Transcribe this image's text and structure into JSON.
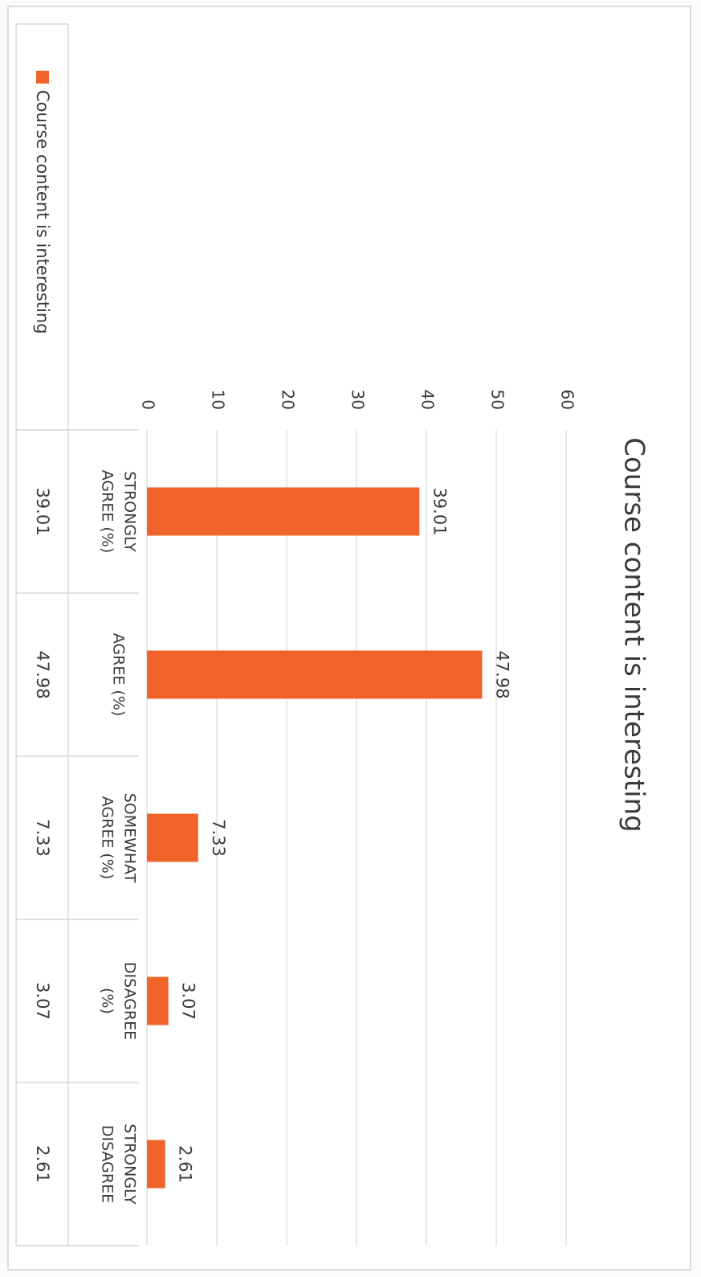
{
  "chart_data": {
    "type": "bar",
    "title": "Course content is interesting",
    "categories": [
      [
        "STRONGLY",
        "AGREE (%)"
      ],
      [
        "AGREE (%)"
      ],
      [
        "SOMEWHAT",
        "AGREE (%)"
      ],
      [
        "DISAGREE",
        "(%)"
      ],
      [
        "STRONGLY",
        "DISAGREE"
      ]
    ],
    "series": [
      {
        "name": "Course content is interesting",
        "color": "#f0642a",
        "values": [
          39.01,
          47.98,
          7.33,
          3.07,
          2.61
        ]
      }
    ],
    "ylim": [
      0,
      60
    ],
    "yticks": [
      0,
      10,
      20,
      30,
      40,
      50,
      60
    ],
    "grid": true,
    "data_table": true
  }
}
